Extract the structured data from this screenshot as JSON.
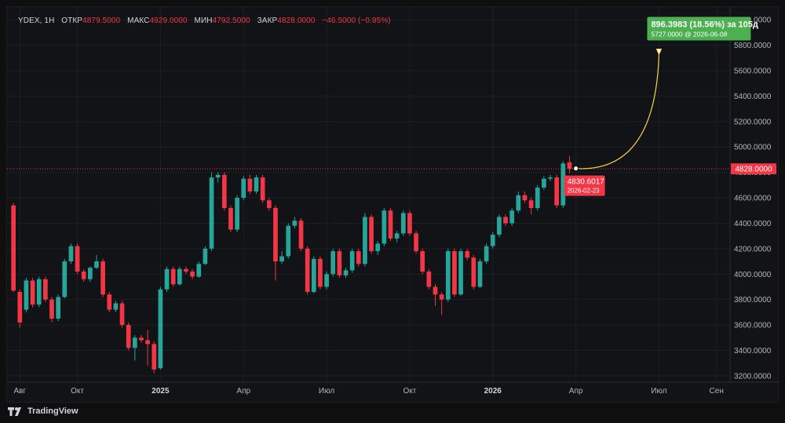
{
  "legend": {
    "symbol": "YDEX",
    "interval": "1Н",
    "open_label": "ОТКР",
    "open": "4879.5000",
    "high_label": "МАКС",
    "high": "4929.0000",
    "low_label": "МИН",
    "low": "4792.5000",
    "close_label": "ЗАКР",
    "close": "4828.0000",
    "change": "−46.5000 (−0.95%)"
  },
  "price_badge": "4828.0000",
  "forecast": {
    "headline": "896.3983 (18.56%) за 105д",
    "target": "5727.0000 @ 2026-06-08",
    "start_price": "4830.6017",
    "start_date": "2026-02-23"
  },
  "branding": {
    "name": "TradingView"
  },
  "colors": {
    "up": "#26a69a",
    "down": "#f23645",
    "forecast_curve": "#f5d547",
    "forecast_label": "#4caf50",
    "price_line": "#f23645"
  },
  "chart_data": {
    "type": "candlestick",
    "y_axis": {
      "ticks": [
        3200,
        3400,
        3600,
        3800,
        4000,
        4200,
        4400,
        4600,
        4800,
        5000,
        5200,
        5400,
        5600,
        5800,
        6000
      ],
      "tick_labels": [
        "3200.0000",
        "3400.0000",
        "3600.0000",
        "3800.0000",
        "4000.0000",
        "4200.0000",
        "4400.0000",
        "4600.0000",
        "4800.0000",
        "5000.0000",
        "5200.0000",
        "5400.0000",
        "5600.0000",
        "5800.0000",
        "6000.0000"
      ],
      "ylim": [
        3150,
        6100
      ]
    },
    "x_axis": {
      "labels": [
        {
          "text": "Авг",
          "week": 1,
          "bold": false
        },
        {
          "text": "Окт",
          "week": 10,
          "bold": false
        },
        {
          "text": "2025",
          "week": 23,
          "bold": true
        },
        {
          "text": "Апр",
          "week": 36,
          "bold": false
        },
        {
          "text": "Июл",
          "week": 49,
          "bold": false
        },
        {
          "text": "Окт",
          "week": 62,
          "bold": false
        },
        {
          "text": "2026",
          "week": 75,
          "bold": true
        },
        {
          "text": "Апр",
          "week": 88,
          "bold": false
        },
        {
          "text": "Июл",
          "week": 101,
          "bold": false
        },
        {
          "text": "Сен",
          "week": 110,
          "bold": false
        }
      ],
      "week_range": [
        -1,
        112
      ]
    },
    "candles": [
      [
        4540,
        3870,
        4560,
        3860
      ],
      [
        3860,
        3620,
        3880,
        3580
      ],
      [
        3720,
        3950,
        3970,
        3700
      ],
      [
        3950,
        3760,
        3970,
        3740
      ],
      [
        3760,
        3960,
        3980,
        3740
      ],
      [
        3960,
        3800,
        3980,
        3780
      ],
      [
        3800,
        3650,
        3820,
        3620
      ],
      [
        3650,
        3820,
        3840,
        3630
      ],
      [
        3820,
        4100,
        4120,
        3810
      ],
      [
        4100,
        4220,
        4240,
        4080
      ],
      [
        4220,
        4020,
        4240,
        4000
      ],
      [
        4020,
        3960,
        4040,
        3940
      ],
      [
        3960,
        4050,
        4060,
        3940
      ],
      [
        4050,
        4100,
        4150,
        4040
      ],
      [
        4100,
        3840,
        4120,
        3820
      ],
      [
        3840,
        3720,
        3860,
        3700
      ],
      [
        3720,
        3770,
        3790,
        3700
      ],
      [
        3770,
        3600,
        3790,
        3580
      ],
      [
        3600,
        3420,
        3620,
        3400
      ],
      [
        3420,
        3500,
        3520,
        3320
      ],
      [
        3500,
        3480,
        3520,
        3460
      ],
      [
        3480,
        3450,
        3560,
        3280
      ],
      [
        3450,
        3250,
        3470,
        3220
      ],
      [
        3260,
        3880,
        3900,
        3250
      ],
      [
        3880,
        4040,
        4060,
        3860
      ],
      [
        4040,
        3920,
        4060,
        3900
      ],
      [
        3920,
        4040,
        4060,
        3910
      ],
      [
        4040,
        4020,
        4060,
        4000
      ],
      [
        4020,
        3980,
        4040,
        3960
      ],
      [
        3980,
        4080,
        4100,
        3970
      ],
      [
        4080,
        4200,
        4220,
        4070
      ],
      [
        4200,
        4760,
        4800,
        4180
      ],
      [
        4760,
        4780,
        4800,
        4720
      ],
      [
        4780,
        4520,
        4800,
        4500
      ],
      [
        4520,
        4350,
        4540,
        4330
      ],
      [
        4350,
        4600,
        4620,
        4330
      ],
      [
        4600,
        4750,
        4770,
        4580
      ],
      [
        4750,
        4650,
        4780,
        4630
      ],
      [
        4650,
        4760,
        4780,
        4630
      ],
      [
        4760,
        4580,
        4780,
        4560
      ],
      [
        4580,
        4520,
        4600,
        4500
      ],
      [
        4520,
        4100,
        4540,
        3950
      ],
      [
        4100,
        4140,
        4180,
        4080
      ],
      [
        4140,
        4380,
        4400,
        4120
      ],
      [
        4380,
        4420,
        4450,
        4360
      ],
      [
        4420,
        4200,
        4440,
        4180
      ],
      [
        4200,
        3860,
        4220,
        3840
      ],
      [
        3860,
        4120,
        4140,
        3850
      ],
      [
        4120,
        3900,
        4140,
        3880
      ],
      [
        3900,
        4000,
        4020,
        3880
      ],
      [
        4000,
        4180,
        4200,
        3980
      ],
      [
        4180,
        3990,
        4200,
        3970
      ],
      [
        3990,
        4030,
        4050,
        3970
      ],
      [
        4030,
        4180,
        4200,
        4010
      ],
      [
        4180,
        4080,
        4200,
        4060
      ],
      [
        4080,
        4450,
        4480,
        4060
      ],
      [
        4450,
        4180,
        4470,
        4160
      ],
      [
        4180,
        4240,
        4260,
        4150
      ],
      [
        4240,
        4500,
        4520,
        4220
      ],
      [
        4500,
        4280,
        4520,
        4260
      ],
      [
        4280,
        4320,
        4340,
        4250
      ],
      [
        4320,
        4480,
        4500,
        4300
      ],
      [
        4480,
        4320,
        4500,
        4300
      ],
      [
        4320,
        4180,
        4340,
        4160
      ],
      [
        4180,
        4020,
        4200,
        4000
      ],
      [
        4020,
        3900,
        4040,
        3880
      ],
      [
        3900,
        3840,
        3920,
        3750
      ],
      [
        3840,
        3800,
        3860,
        3680
      ],
      [
        3800,
        4180,
        4200,
        3780
      ],
      [
        4180,
        3840,
        4200,
        3820
      ],
      [
        3840,
        4180,
        4200,
        3830
      ],
      [
        4180,
        4130,
        4200,
        4110
      ],
      [
        4130,
        3900,
        4150,
        3880
      ],
      [
        3900,
        4100,
        4120,
        3890
      ],
      [
        4100,
        4220,
        4240,
        4080
      ],
      [
        4220,
        4310,
        4330,
        4200
      ],
      [
        4310,
        4450,
        4470,
        4290
      ],
      [
        4450,
        4400,
        4470,
        4380
      ],
      [
        4400,
        4500,
        4520,
        4380
      ],
      [
        4500,
        4620,
        4650,
        4480
      ],
      [
        4620,
        4580,
        4650,
        4560
      ],
      [
        4580,
        4520,
        4600,
        4470
      ],
      [
        4520,
        4680,
        4700,
        4500
      ],
      [
        4680,
        4750,
        4770,
        4660
      ],
      [
        4750,
        4760,
        4780,
        4730
      ],
      [
        4760,
        4540,
        4780,
        4520
      ],
      [
        4540,
        4870,
        4890,
        4520
      ],
      [
        4879.5,
        4828,
        4929,
        4792.5
      ]
    ],
    "current_price": 4828,
    "forecast_path": {
      "from": {
        "date": "2026-02-23",
        "week": 88,
        "price": 4830.6017
      },
      "to": {
        "date": "2026-06-08",
        "week": 101,
        "price": 5727
      },
      "change": 896.3983,
      "change_pct": 18.56,
      "days": 105
    }
  }
}
